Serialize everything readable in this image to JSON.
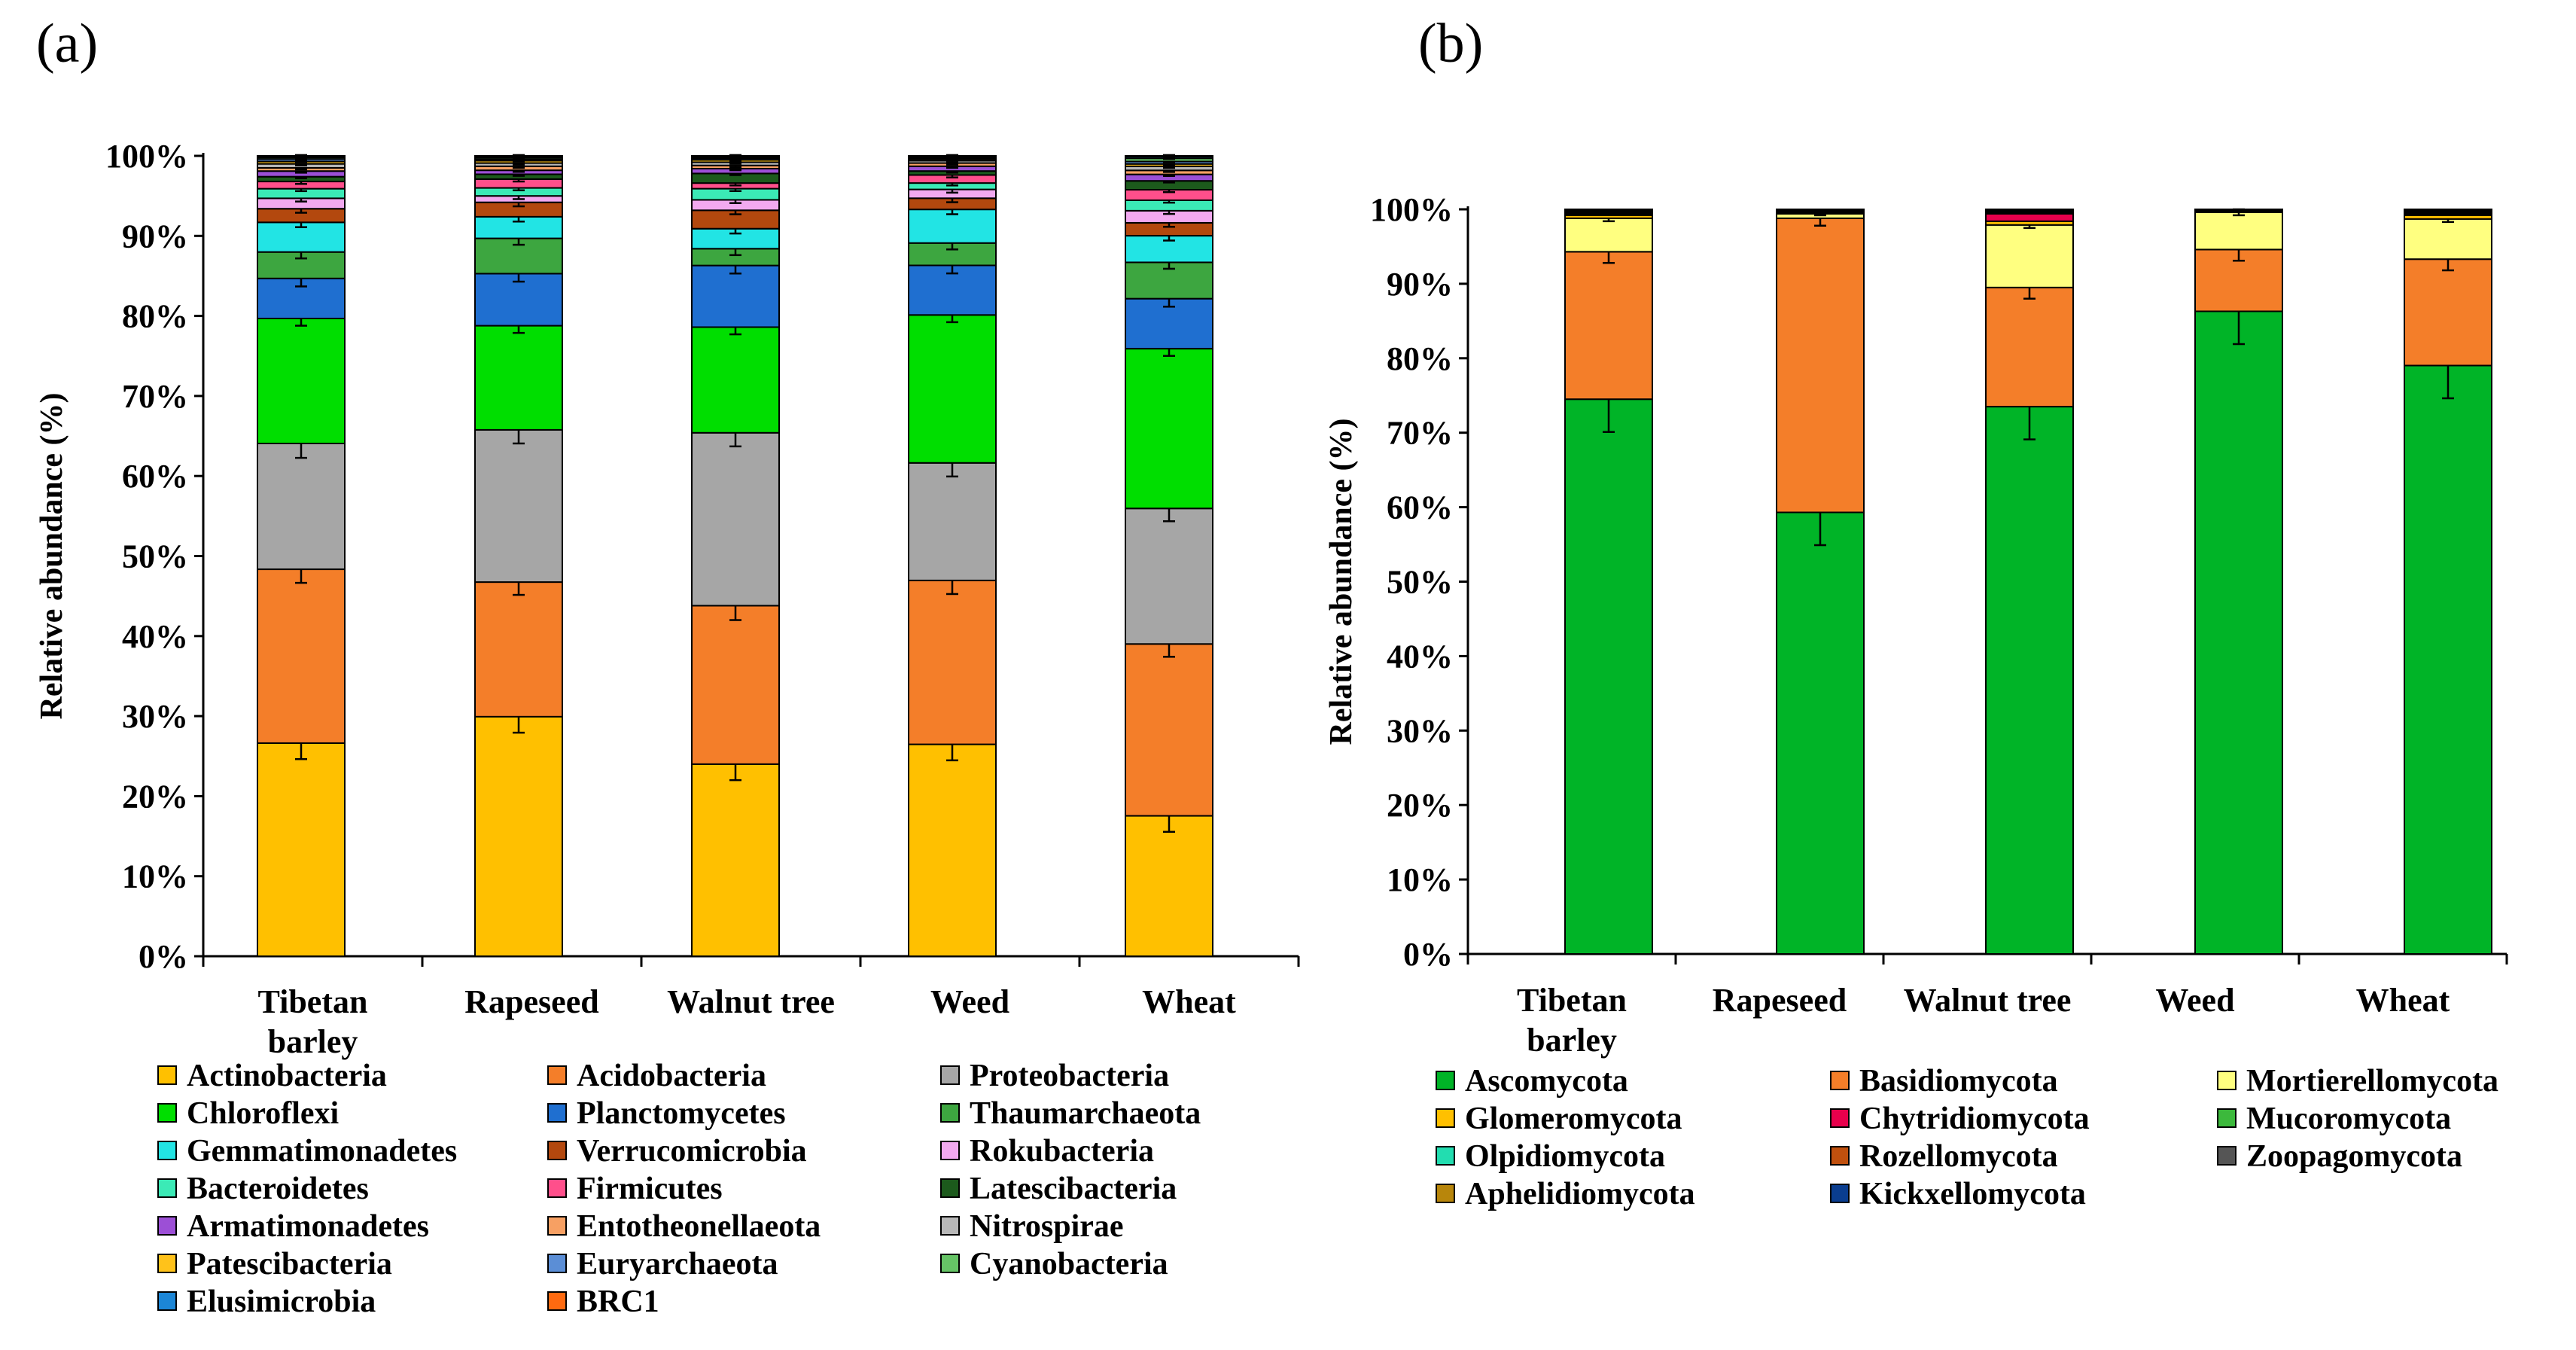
{
  "panels": [
    {
      "label": "(a)",
      "chart_data": {
        "type": "bar",
        "stacked": true,
        "normalized_percent": true,
        "ylabel": "Relative abundance (%)",
        "ylim": [
          0,
          100
        ],
        "yticks": [
          "0%",
          "10%",
          "20%",
          "30%",
          "40%",
          "50%",
          "60%",
          "70%",
          "80%",
          "90%",
          "100%"
        ],
        "categories": [
          [
            "Tibetan",
            "barley"
          ],
          [
            "Rapeseed"
          ],
          [
            "Walnut tree"
          ],
          [
            "Weed"
          ],
          [
            "Wheat"
          ]
        ],
        "series": [
          {
            "name": "Actinobacteria",
            "color": "#FFC000",
            "values": [
              26.6,
              29.9,
              24.0,
              26.5,
              17.4
            ],
            "err": [
              2.0,
              2.0,
              2.0,
              2.0,
              2.0
            ]
          },
          {
            "name": "Acidobacteria",
            "color": "#F47E29",
            "values": [
              21.7,
              16.8,
              19.8,
              20.5,
              21.3
            ],
            "err": [
              1.7,
              1.6,
              1.8,
              1.7,
              1.6
            ]
          },
          {
            "name": "Proteobacteria",
            "color": "#A6A6A6",
            "values": [
              15.7,
              19.0,
              21.6,
              14.7,
              16.8
            ],
            "err": [
              1.8,
              1.7,
              1.7,
              1.7,
              1.6
            ]
          },
          {
            "name": "Chloroflexi",
            "color": "#00DE00",
            "values": [
              15.6,
              13.0,
              13.2,
              18.5,
              19.8
            ],
            "err": [
              0.9,
              0.9,
              0.9,
              0.9,
              0.9
            ]
          },
          {
            "name": "Planctomycetes",
            "color": "#1F6FD0",
            "values": [
              5.0,
              6.5,
              7.7,
              6.2,
              6.2
            ],
            "err": [
              1.0,
              1.0,
              1.0,
              1.0,
              1.0
            ]
          },
          {
            "name": "Thaumarchaeota",
            "color": "#3DA640",
            "values": [
              3.3,
              4.4,
              2.1,
              2.8,
              4.5
            ],
            "err": [
              0.8,
              0.8,
              0.8,
              0.8,
              0.8
            ]
          },
          {
            "name": "Gemmatimonadetes",
            "color": "#22E4E4",
            "values": [
              3.7,
              2.7,
              2.5,
              4.2,
              3.3
            ],
            "err": [
              0.6,
              0.6,
              0.6,
              0.6,
              0.6
            ]
          },
          {
            "name": "Verrucomicrobia",
            "color": "#B3480E",
            "values": [
              1.7,
              1.8,
              2.3,
              1.4,
              1.6
            ],
            "err": [
              0.5,
              0.5,
              0.5,
              0.5,
              0.5
            ]
          },
          {
            "name": "Rokubacteria",
            "color": "#F2A9F0",
            "values": [
              1.3,
              0.8,
              1.3,
              1.1,
              1.5
            ],
            "err": [
              0.4,
              0.4,
              0.4,
              0.4,
              0.4
            ]
          },
          {
            "name": "Bacteroidetes",
            "color": "#3BEAB6",
            "values": [
              1.2,
              1.0,
              1.4,
              0.8,
              1.3
            ],
            "err": [
              0.3,
              0.3,
              0.3,
              0.3,
              0.3
            ]
          },
          {
            "name": "Firmicutes",
            "color": "#FF4F8B",
            "values": [
              0.9,
              1.1,
              0.7,
              1.0,
              1.3
            ],
            "err": [
              0.3,
              0.3,
              0.3,
              0.3,
              0.3
            ]
          },
          {
            "name": "Latescibacteria",
            "color": "#1C5A1C",
            "values": [
              0.6,
              0.6,
              1.2,
              0.5,
              1.1
            ],
            "err": [
              0.2,
              0.2,
              0.2,
              0.2,
              0.2
            ]
          },
          {
            "name": "Armatimonadetes",
            "color": "#9C4FD6",
            "values": [
              0.7,
              0.5,
              0.6,
              0.6,
              0.8
            ],
            "err": [
              0.2,
              0.2,
              0.2,
              0.2,
              0.2
            ]
          },
          {
            "name": "Entotheonellaeota",
            "color": "#F7A063",
            "values": [
              0.4,
              0.5,
              0.4,
              0.4,
              0.5
            ],
            "err": [
              0.2,
              0.2,
              0.2,
              0.2,
              0.2
            ]
          },
          {
            "name": "Nitrospirae",
            "color": "#B8B8B8",
            "values": [
              0.5,
              0.4,
              0.4,
              0.3,
              0.5
            ],
            "err": [
              0.2,
              0.2,
              0.2,
              0.2,
              0.2
            ]
          },
          {
            "name": "Patescibacteria",
            "color": "#FFC21A",
            "values": [
              0.3,
              0.3,
              0.3,
              0.2,
              0.3
            ],
            "err": [
              0.1,
              0.1,
              0.1,
              0.1,
              0.1
            ]
          },
          {
            "name": "Euryarchaeota",
            "color": "#5B8ED6",
            "values": [
              0.3,
              0.2,
              0.2,
              0.1,
              0.3
            ],
            "err": [
              0.1,
              0.1,
              0.1,
              0.1,
              0.1
            ]
          },
          {
            "name": "Cyanobacteria",
            "color": "#66C466",
            "values": [
              0.2,
              0.2,
              0.1,
              0.1,
              0.4
            ],
            "err": [
              0.1,
              0.1,
              0.1,
              0.1,
              0.1
            ]
          },
          {
            "name": "Elusimicrobia",
            "color": "#1C86D6",
            "values": [
              0.1,
              0.1,
              0.1,
              0.1,
              0.2
            ],
            "err": [
              0.1,
              0.1,
              0.1,
              0.1,
              0.1
            ]
          },
          {
            "name": "BRC1",
            "color": "#FF6A10",
            "values": [
              0.1,
              0.1,
              0.1,
              0.1,
              0.1
            ],
            "err": [
              0.1,
              0.1,
              0.1,
              0.1,
              0.1
            ]
          }
        ]
      }
    },
    {
      "label": "(b)",
      "chart_data": {
        "type": "bar",
        "stacked": true,
        "normalized_percent": true,
        "ylabel": "Relative abundance (%)",
        "ylim": [
          0,
          100
        ],
        "yticks": [
          "0%",
          "10%",
          "20%",
          "30%",
          "40%",
          "50%",
          "60%",
          "70%",
          "80%",
          "90%",
          "100%"
        ],
        "categories": [
          [
            "Tibetan",
            "barley"
          ],
          [
            "Rapeseed"
          ],
          [
            "Walnut tree"
          ],
          [
            "Weed"
          ],
          [
            "Wheat"
          ]
        ],
        "series": [
          {
            "name": "Ascomycota",
            "color": "#00B427",
            "values": [
              74.5,
              59.3,
              73.5,
              86.3,
              79.1
            ],
            "err": [
              4.4,
              4.4,
              4.4,
              4.4,
              4.4
            ]
          },
          {
            "name": "Basidiomycota",
            "color": "#F47E29",
            "values": [
              19.8,
              39.5,
              16.0,
              8.3,
              14.3
            ],
            "err": [
              1.5,
              1.0,
              1.5,
              1.5,
              1.5
            ]
          },
          {
            "name": "Mortierellomycota",
            "color": "#FFFF80",
            "values": [
              4.5,
              0.6,
              8.4,
              5.0,
              5.4
            ],
            "err": [
              0.4,
              0.2,
              0.4,
              0.4,
              0.4
            ]
          },
          {
            "name": "Glomeromycota",
            "color": "#FFC000",
            "values": [
              0.4,
              0.2,
              0.5,
              0.1,
              0.5
            ],
            "err": [
              0,
              0,
              0,
              0,
              0
            ]
          },
          {
            "name": "Chytridiomycota",
            "color": "#E8004C",
            "values": [
              0.2,
              0.1,
              1.0,
              0.1,
              0.2
            ],
            "err": [
              0,
              0,
              0,
              0,
              0
            ]
          },
          {
            "name": "Mucoromycota",
            "color": "#3CB93C",
            "values": [
              0.1,
              0.1,
              0.2,
              0.05,
              0.1
            ],
            "err": [
              0,
              0,
              0,
              0,
              0
            ]
          },
          {
            "name": "Olpidiomycota",
            "color": "#22DDB0",
            "values": [
              0.1,
              0.05,
              0.1,
              0.05,
              0.1
            ],
            "err": [
              0,
              0,
              0,
              0,
              0
            ]
          },
          {
            "name": "Rozellomycota",
            "color": "#C0500E",
            "values": [
              0.2,
              0.05,
              0.1,
              0.05,
              0.2
            ],
            "err": [
              0,
              0,
              0,
              0,
              0
            ]
          },
          {
            "name": "Zoopagomycota",
            "color": "#555555",
            "values": [
              0.1,
              0.05,
              0.1,
              0.03,
              0.1
            ],
            "err": [
              0,
              0,
              0,
              0,
              0
            ]
          },
          {
            "name": "Aphelidiomycota",
            "color": "#B8860B",
            "values": [
              0.05,
              0.03,
              0.05,
              0.01,
              0.05
            ],
            "err": [
              0,
              0,
              0,
              0,
              0
            ]
          },
          {
            "name": "Kickxellomycota",
            "color": "#0A3D8F",
            "values": [
              0.05,
              0.02,
              0.05,
              0.01,
              0.05
            ],
            "err": [
              0,
              0,
              0,
              0,
              0
            ]
          }
        ]
      }
    }
  ]
}
